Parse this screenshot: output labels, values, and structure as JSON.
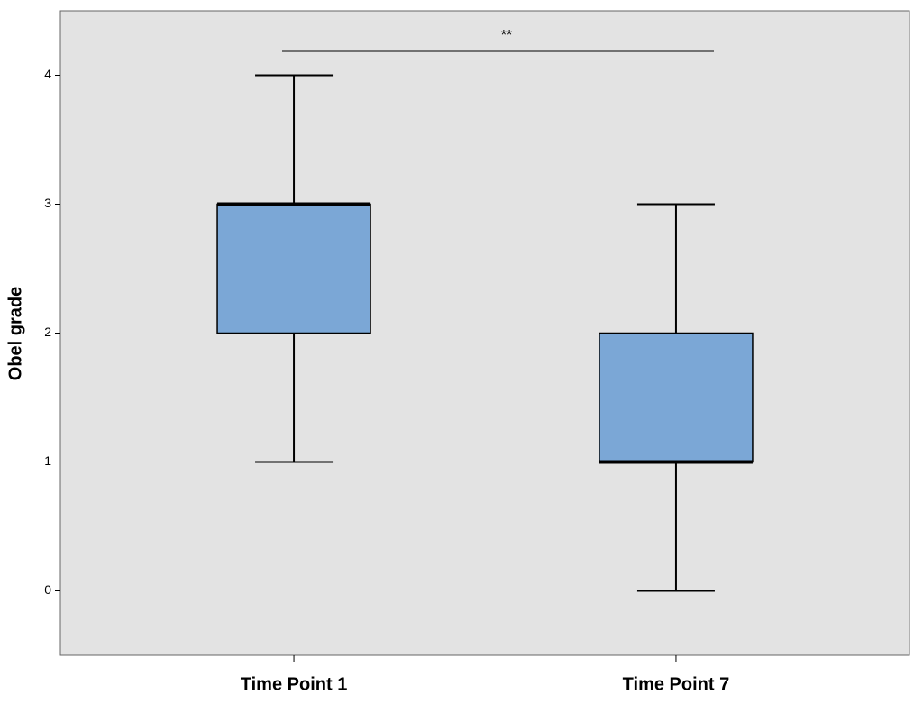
{
  "chart_data": {
    "type": "box",
    "y_label": "Obel grade",
    "categories": [
      "Time Point 1",
      "Time Point 7"
    ],
    "boxes": [
      {
        "min": 1,
        "q1": 2,
        "median": 3,
        "q3": 3,
        "max": 4
      },
      {
        "min": 0,
        "q1": 1,
        "median": 1,
        "q3": 2,
        "max": 3
      }
    ],
    "color": "#7ba7d6",
    "ylim": [
      -0.5,
      4.5
    ],
    "yticks": [
      0,
      1,
      2,
      3,
      4
    ],
    "annotation": "**"
  }
}
